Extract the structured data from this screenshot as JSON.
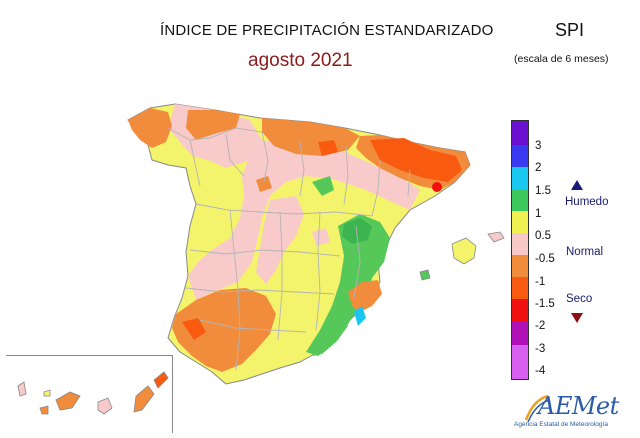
{
  "header": {
    "title": "ÍNDICE DE PRECIPITACIÓN ESTANDARIZADO",
    "period": "agosto 2021",
    "index_name": "SPI",
    "scale_note": "(escala de 6 meses)"
  },
  "legend": {
    "labels": [
      "3",
      "2",
      "1.5",
      "1",
      "0.5",
      "-0.5",
      "-1",
      "-1.5",
      "-2",
      "-3",
      "-4"
    ],
    "colors": [
      "#6b10d0",
      "#3a3af0",
      "#18c8f0",
      "#3cc85a",
      "#f0f050",
      "#f8c8c8",
      "#f08c3c",
      "#f85a10",
      "#f01010",
      "#b010b8",
      "#d860f0"
    ],
    "classes": {
      "wet": "Humedo",
      "normal": "Normal",
      "dry": "Seco"
    }
  },
  "map_colors": {
    "green": "#56c85a",
    "yellow": "#f4f46c",
    "pink": "#f8caca",
    "orange": "#f08c3c",
    "dark_orange": "#f85a10",
    "red": "#f01010",
    "cyan": "#18c8f0",
    "province_border": "#b4b4b4"
  },
  "logo": {
    "name": "AEMet",
    "subtitle": "Agencia Estatal de Meteorología"
  }
}
